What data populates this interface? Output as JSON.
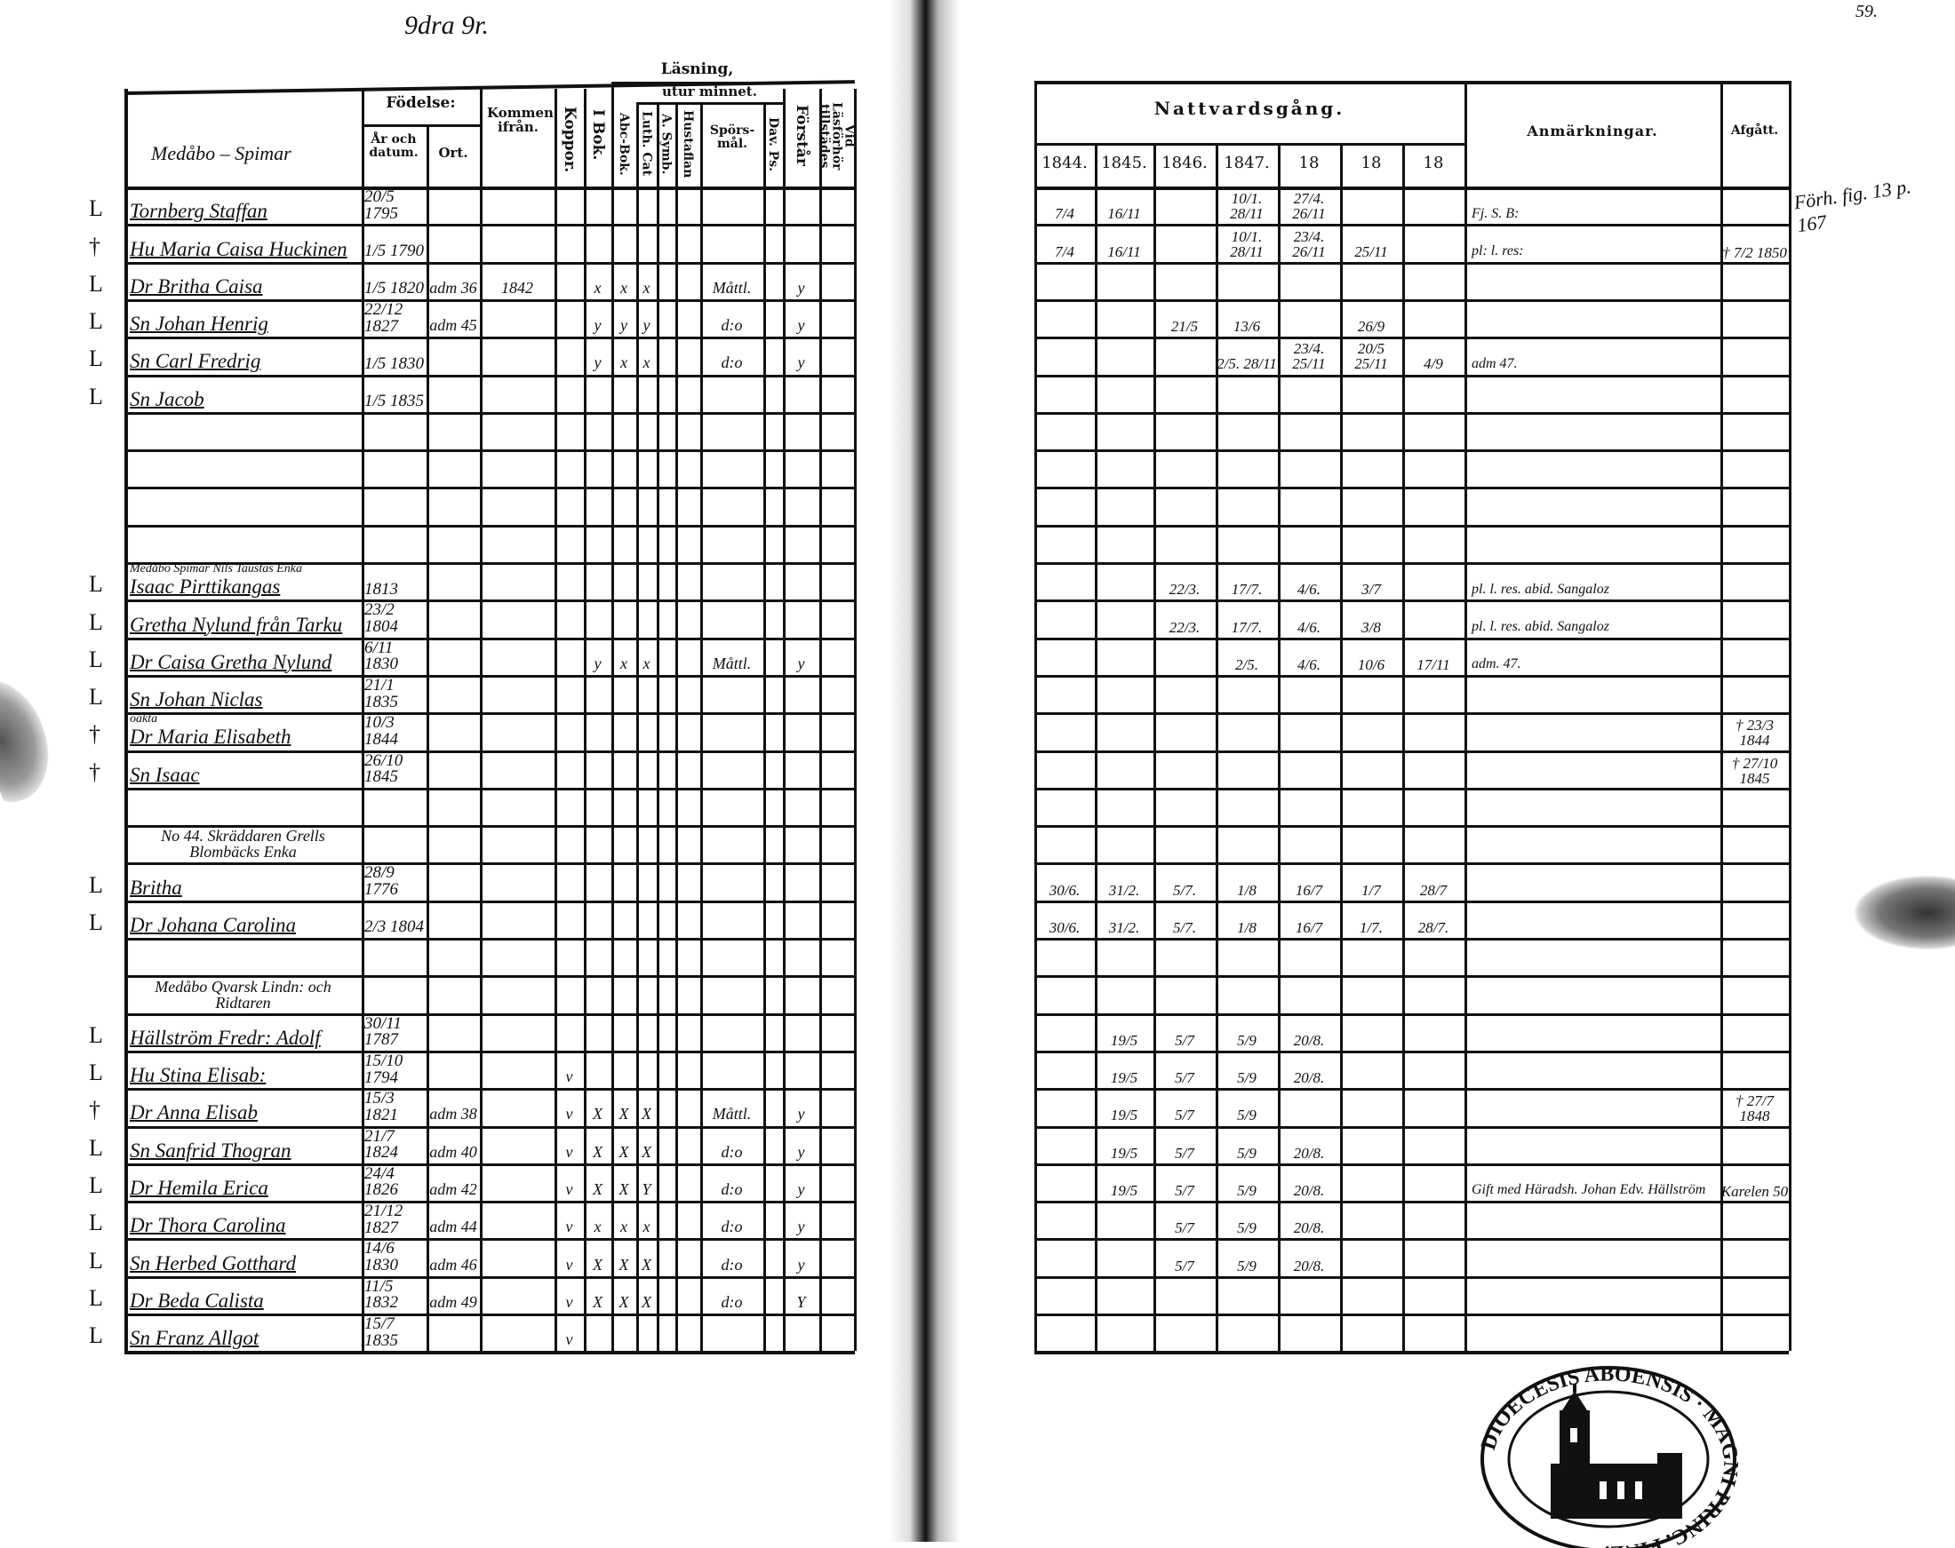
{
  "margin": {
    "top_left_note": "9dra 9r.",
    "page_number": "59.",
    "right_margin_note": "Förh. fig. 13 p. 167"
  },
  "left_header": {
    "name_col": "Medåbo – Spimar",
    "fodelse": "Födelse:",
    "ar_och_datum": "År och datum.",
    "ort": "Ort.",
    "kommen": "Kommen ifrån.",
    "koppor": "Koppor.",
    "lasning": "Läsning,",
    "utur_minnet": "utur minnet.",
    "i_bok": "I Bok.",
    "abc_bok": "Abc-Bok.",
    "luth_cat": "Luth. Cat",
    "a_symb": "A. Symb.",
    "hustaflan": "Hustaflan",
    "sporsmal": "Spörs-mål.",
    "dav": "Dav. Ps.",
    "forstar": "Förstår",
    "vid_lasforhor": "Vid Läsförhör tillstädes"
  },
  "right_header": {
    "nattvard": "Nattvardsgång.",
    "years": [
      "1844.",
      "1845.",
      "1846.",
      "1847.",
      "18",
      "18",
      "18"
    ],
    "anmarkningar": "Anmärkningar.",
    "afgatt": "Afgått."
  },
  "rows": [
    {
      "mark": "L",
      "name": "Tornberg Staffan",
      "birth": "20/5 1795",
      "nattvard": [
        "7/4",
        "16/11",
        "",
        "10/1. 28/11",
        "27/4. 26/11",
        "",
        ""
      ],
      "anm": "Fj. S. B:"
    },
    {
      "mark": "†",
      "name": "Hu Maria Caisa Huckinen",
      "birth": "1/5 1790",
      "nattvard": [
        "7/4",
        "16/11",
        "",
        "10/1. 28/11",
        "23/4. 26/11",
        "25/11",
        ""
      ],
      "anm": "pl: l. res:",
      "afg": "† 7/2 1850"
    },
    {
      "mark": "L",
      "name": "Dr Britha Caisa",
      "birth": "1/5 1820",
      "ort": "adm 36",
      "kommen": "1842",
      "lasning": [
        "",
        "x",
        "x",
        "x",
        "",
        "",
        "Måttl.",
        "",
        "y",
        ""
      ]
    },
    {
      "mark": "L",
      "name": "Sn Johan Henrig",
      "birth": "22/12 1827",
      "ort": "adm 45",
      "lasning": [
        "",
        "y",
        "y",
        "y",
        "",
        "",
        "d:o",
        "",
        "y",
        ""
      ],
      "nattvard": [
        "",
        "",
        "21/5",
        "13/6",
        "",
        "26/9",
        ""
      ]
    },
    {
      "mark": "L",
      "name": "Sn Carl Fredrig",
      "birth": "1/5 1830",
      "lasning": [
        "",
        "y",
        "x",
        "x",
        "",
        "",
        "d:o",
        "",
        "y",
        ""
      ],
      "nattvard": [
        "",
        "",
        "",
        "2/5. 28/11",
        "23/4. 25/11",
        "20/5 25/11",
        "4/9"
      ],
      "anm": "adm 47."
    },
    {
      "mark": "L",
      "name": "Sn Jacob",
      "birth": "1/5 1835"
    },
    {},
    {},
    {},
    {},
    {
      "mark": "L",
      "note": "Medåbo Spimar Nils Taustas Enka",
      "name": "Isaac Pirttikangas",
      "birth": "1813",
      "nattvard": [
        "",
        "",
        "22/3.",
        "17/7.",
        "4/6.",
        "3/7",
        ""
      ],
      "anm": "pl. l. res. abid. Sangaloz"
    },
    {
      "mark": "L",
      "name": "Gretha Nylund från Tarku",
      "birth": "23/2 1804",
      "nattvard": [
        "",
        "",
        "22/3.",
        "17/7.",
        "4/6.",
        "3/8",
        ""
      ],
      "anm": "pl. l. res. abid. Sangaloz"
    },
    {
      "mark": "L",
      "name": "Dr Caisa Gretha Nylund",
      "birth": "6/11 1830",
      "lasning": [
        "",
        "y",
        "x",
        "x",
        "",
        "",
        "Måttl.",
        "",
        "y",
        ""
      ],
      "nattvard": [
        "",
        "",
        "",
        "2/5.",
        "4/6.",
        "10/6",
        "17/11"
      ],
      "anm": "adm. 47."
    },
    {
      "mark": "L",
      "name": "Sn Johan Niclas",
      "birth": "21/1 1835"
    },
    {
      "mark": "†",
      "note": "oäkta",
      "name": "Dr Maria Elisabeth",
      "birth": "10/3 1844",
      "afg": "† 23/3 1844"
    },
    {
      "mark": "†",
      "name": "Sn Isaac",
      "birth": "26/10 1845",
      "afg": "† 27/10 1845"
    },
    {},
    {
      "section": "No 44. Skräddaren Grells Blombäcks Enka"
    },
    {
      "mark": "L",
      "name": "Britha",
      "birth": "28/9 1776",
      "nattvard": [
        "30/6.",
        "31/2.",
        "5/7.",
        "1/8",
        "16/7",
        "1/7",
        "28/7"
      ]
    },
    {
      "mark": "L",
      "name": "Dr Johana Carolina",
      "birth": "2/3 1804",
      "nattvard": [
        "30/6.",
        "31/2.",
        "5/7.",
        "1/8",
        "16/7",
        "1/7.",
        "28/7."
      ]
    },
    {},
    {
      "section": "Medåbo Qvarsk Lindn: och Ridtaren"
    },
    {
      "mark": "L",
      "name": "Hällström Fredr: Adolf",
      "birth": "30/11 1787",
      "nattvard": [
        "",
        "19/5",
        "5/7",
        "5/9",
        "20/8.",
        "",
        ""
      ]
    },
    {
      "mark": "L",
      "name": "Hu Stina Elisab:",
      "birth": "15/10 1794",
      "lasning": [
        "v",
        "",
        "",
        "",
        "",
        "",
        "",
        "",
        "",
        ""
      ],
      "nattvard": [
        "",
        "19/5",
        "5/7",
        "5/9",
        "20/8.",
        "",
        ""
      ]
    },
    {
      "mark": "†",
      "name": "Dr Anna Elisab",
      "birth": "15/3 1821",
      "ort": "adm 38",
      "lasning": [
        "v",
        "X",
        "X",
        "X",
        "",
        "",
        "Måttl.",
        "",
        "y",
        ""
      ],
      "nattvard": [
        "",
        "19/5",
        "5/7",
        "5/9",
        "",
        "",
        ""
      ],
      "afg": "† 27/7 1848"
    },
    {
      "mark": "L",
      "name": "Sn Sanfrid Thogran",
      "birth": "21/7 1824",
      "ort": "adm 40",
      "lasning": [
        "v",
        "X",
        "X",
        "X",
        "",
        "",
        "d:o",
        "",
        "y",
        ""
      ],
      "nattvard": [
        "",
        "19/5",
        "5/7",
        "5/9",
        "20/8.",
        "",
        ""
      ]
    },
    {
      "mark": "L",
      "name": "Dr Hemila Erica",
      "birth": "24/4 1826",
      "ort": "adm 42",
      "lasning": [
        "v",
        "X",
        "X",
        "Y",
        "",
        "",
        "d:o",
        "",
        "y",
        ""
      ],
      "nattvard": [
        "",
        "19/5",
        "5/7",
        "5/9",
        "20/8.",
        "",
        ""
      ],
      "anm": "Gift med Häradsh. Johan Edv. Hällström",
      "afg": "Karelen 50"
    },
    {
      "mark": "L",
      "name": "Dr Thora Carolina",
      "birth": "21/12 1827",
      "ort": "adm 44",
      "lasning": [
        "v",
        "x",
        "x",
        "x",
        "",
        "",
        "d:o",
        "",
        "y",
        ""
      ],
      "nattvard": [
        "",
        "",
        "5/7",
        "5/9",
        "20/8.",
        "",
        ""
      ]
    },
    {
      "mark": "L",
      "name": "Sn Herbed Gotthard",
      "birth": "14/6 1830",
      "ort": "adm 46",
      "lasning": [
        "v",
        "X",
        "X",
        "X",
        "",
        "",
        "d:o",
        "",
        "y",
        ""
      ],
      "nattvard": [
        "",
        "",
        "5/7",
        "5/9",
        "20/8.",
        "",
        ""
      ]
    },
    {
      "mark": "L",
      "name": "Dr Beda Calista",
      "birth": "11/5 1832",
      "ort": "adm 49",
      "lasning": [
        "v",
        "X",
        "X",
        "X",
        "",
        "",
        "d:o",
        "",
        "Y",
        ""
      ]
    },
    {
      "mark": "L",
      "name": "Sn Franz Allgot",
      "birth": "15/7 1835",
      "lasning": [
        "v",
        "",
        "",
        "",
        "",
        "",
        "",
        "",
        "",
        ""
      ]
    }
  ],
  "stamp": {
    "text": "DIOECESIS ABOENSIS · MAGNI PRINC. FINL."
  },
  "colors": {
    "ink": "#111111",
    "paper": "#ffffff"
  }
}
